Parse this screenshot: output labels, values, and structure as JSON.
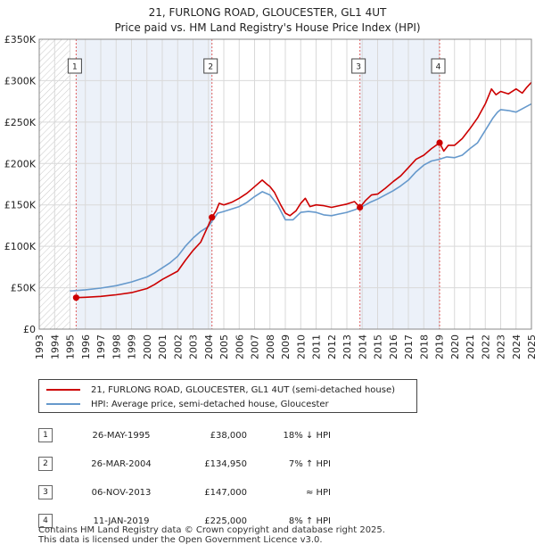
{
  "title_line1": "21, FURLONG ROAD, GLOUCESTER, GL1 4UT",
  "title_line2": "Price paid vs. HM Land Registry's House Price Index (HPI)",
  "chart_data": {
    "type": "line",
    "title": "21, FURLONG ROAD, GLOUCESTER, GL1 4UT — Price paid vs. HM Land Registry's House Price Index (HPI)",
    "xlabel": "",
    "ylabel": "",
    "xlim": [
      1993,
      2025
    ],
    "ylim": [
      0,
      350000
    ],
    "x_ticks": [
      1993,
      1994,
      1995,
      1996,
      1997,
      1998,
      1999,
      2000,
      2001,
      2002,
      2003,
      2004,
      2005,
      2006,
      2007,
      2008,
      2009,
      2010,
      2011,
      2012,
      2013,
      2014,
      2015,
      2016,
      2017,
      2018,
      2019,
      2020,
      2021,
      2022,
      2023,
      2024,
      2025
    ],
    "y_ticks": [
      {
        "value": 0,
        "label": "£0"
      },
      {
        "value": 50000,
        "label": "£50K"
      },
      {
        "value": 100000,
        "label": "£100K"
      },
      {
        "value": 150000,
        "label": "£150K"
      },
      {
        "value": 200000,
        "label": "£200K"
      },
      {
        "value": 250000,
        "label": "£250K"
      },
      {
        "value": 300000,
        "label": "£300K"
      },
      {
        "value": 350000,
        "label": "£350K"
      }
    ],
    "grid": true,
    "no_data_region": [
      1993,
      1995.0
    ],
    "series": [
      {
        "name": "21, FURLONG ROAD, GLOUCESTER, GL1 4UT (semi-detached house)",
        "color": "#cc0000",
        "points": [
          [
            1995.4,
            38000
          ],
          [
            1996.0,
            38500
          ],
          [
            1997.0,
            39500
          ],
          [
            1998.0,
            41500
          ],
          [
            1999.0,
            44000
          ],
          [
            2000.0,
            49000
          ],
          [
            2000.5,
            54000
          ],
          [
            2001.0,
            60000
          ],
          [
            2002.0,
            70000
          ],
          [
            2002.5,
            83000
          ],
          [
            2003.0,
            95000
          ],
          [
            2003.5,
            105000
          ],
          [
            2004.23,
            134950
          ],
          [
            2004.5,
            143000
          ],
          [
            2004.7,
            152000
          ],
          [
            2005.0,
            150000
          ],
          [
            2005.5,
            153000
          ],
          [
            2006.0,
            158000
          ],
          [
            2006.5,
            164000
          ],
          [
            2007.0,
            172000
          ],
          [
            2007.5,
            180000
          ],
          [
            2007.8,
            175000
          ],
          [
            2008.0,
            172000
          ],
          [
            2008.3,
            165000
          ],
          [
            2008.7,
            150000
          ],
          [
            2009.0,
            140000
          ],
          [
            2009.3,
            137000
          ],
          [
            2009.7,
            143000
          ],
          [
            2010.0,
            152000
          ],
          [
            2010.3,
            158000
          ],
          [
            2010.6,
            148000
          ],
          [
            2011.0,
            150000
          ],
          [
            2011.5,
            149000
          ],
          [
            2012.0,
            147000
          ],
          [
            2012.5,
            149000
          ],
          [
            2013.0,
            151000
          ],
          [
            2013.5,
            154000
          ],
          [
            2013.85,
            147000
          ],
          [
            2014.2,
            155000
          ],
          [
            2014.6,
            162000
          ],
          [
            2015.0,
            163000
          ],
          [
            2015.5,
            170000
          ],
          [
            2016.0,
            178000
          ],
          [
            2016.5,
            185000
          ],
          [
            2017.0,
            195000
          ],
          [
            2017.5,
            205000
          ],
          [
            2018.0,
            210000
          ],
          [
            2018.5,
            218000
          ],
          [
            2019.03,
            225000
          ],
          [
            2019.3,
            215000
          ],
          [
            2019.6,
            222000
          ],
          [
            2020.0,
            222000
          ],
          [
            2020.5,
            230000
          ],
          [
            2021.0,
            242000
          ],
          [
            2021.5,
            255000
          ],
          [
            2022.0,
            272000
          ],
          [
            2022.4,
            290000
          ],
          [
            2022.7,
            283000
          ],
          [
            2023.0,
            287000
          ],
          [
            2023.5,
            284000
          ],
          [
            2024.0,
            290000
          ],
          [
            2024.4,
            285000
          ],
          [
            2024.7,
            292000
          ],
          [
            2025.0,
            298000
          ]
        ]
      },
      {
        "name": "HPI: Average price, semi-detached house, Gloucester",
        "color": "#6699cc",
        "points": [
          [
            1995.0,
            46000
          ],
          [
            1996.0,
            47500
          ],
          [
            1997.0,
            49500
          ],
          [
            1998.0,
            52500
          ],
          [
            1999.0,
            57000
          ],
          [
            2000.0,
            63000
          ],
          [
            2000.5,
            68000
          ],
          [
            2001.0,
            74000
          ],
          [
            2001.5,
            80000
          ],
          [
            2002.0,
            88000
          ],
          [
            2002.5,
            100000
          ],
          [
            2003.0,
            110000
          ],
          [
            2003.5,
            118000
          ],
          [
            2004.0,
            124000
          ],
          [
            2004.3,
            132000
          ],
          [
            2004.6,
            140000
          ],
          [
            2005.0,
            142000
          ],
          [
            2005.5,
            145000
          ],
          [
            2006.0,
            148000
          ],
          [
            2006.5,
            153000
          ],
          [
            2007.0,
            160000
          ],
          [
            2007.5,
            166000
          ],
          [
            2008.0,
            162000
          ],
          [
            2008.5,
            150000
          ],
          [
            2009.0,
            132000
          ],
          [
            2009.5,
            132000
          ],
          [
            2010.0,
            141000
          ],
          [
            2010.5,
            142000
          ],
          [
            2011.0,
            141000
          ],
          [
            2011.5,
            138000
          ],
          [
            2012.0,
            137000
          ],
          [
            2012.5,
            139000
          ],
          [
            2013.0,
            141000
          ],
          [
            2013.5,
            144000
          ],
          [
            2014.0,
            148000
          ],
          [
            2014.5,
            153000
          ],
          [
            2015.0,
            157000
          ],
          [
            2015.5,
            162000
          ],
          [
            2016.0,
            167000
          ],
          [
            2016.5,
            173000
          ],
          [
            2017.0,
            180000
          ],
          [
            2017.5,
            190000
          ],
          [
            2018.0,
            198000
          ],
          [
            2018.5,
            203000
          ],
          [
            2019.0,
            205000
          ],
          [
            2019.5,
            208000
          ],
          [
            2020.0,
            207000
          ],
          [
            2020.5,
            210000
          ],
          [
            2021.0,
            218000
          ],
          [
            2021.5,
            225000
          ],
          [
            2022.0,
            240000
          ],
          [
            2022.5,
            255000
          ],
          [
            2022.8,
            262000
          ],
          [
            2023.0,
            265000
          ],
          [
            2023.5,
            264000
          ],
          [
            2024.0,
            262000
          ],
          [
            2024.5,
            267000
          ],
          [
            2025.0,
            272000
          ]
        ]
      }
    ],
    "sale_markers": [
      {
        "label": "1",
        "x": 1995.4,
        "y": 38000
      },
      {
        "label": "2",
        "x": 2004.23,
        "y": 134950
      },
      {
        "label": "3",
        "x": 2013.85,
        "y": 147000
      },
      {
        "label": "4",
        "x": 2019.03,
        "y": 225000
      }
    ],
    "shaded_years": [
      [
        1995.4,
        2004.23
      ],
      [
        2013.85,
        2019.03
      ]
    ]
  },
  "legend": {
    "property": "21, FURLONG ROAD, GLOUCESTER, GL1 4UT (semi-detached house)",
    "hpi": "HPI: Average price, semi-detached house, Gloucester"
  },
  "sales": [
    {
      "num": "1",
      "date": "26-MAY-1995",
      "price": "£38,000",
      "hpi": "18% ↓ HPI"
    },
    {
      "num": "2",
      "date": "26-MAR-2004",
      "price": "£134,950",
      "hpi": "7% ↑ HPI"
    },
    {
      "num": "3",
      "date": "06-NOV-2013",
      "price": "£147,000",
      "hpi": "≈ HPI"
    },
    {
      "num": "4",
      "date": "11-JAN-2019",
      "price": "£225,000",
      "hpi": "8% ↑ HPI"
    }
  ],
  "footer_line1": "Contains HM Land Registry data © Crown copyright and database right 2025.",
  "footer_line2": "This data is licensed under the Open Government Licence v3.0."
}
